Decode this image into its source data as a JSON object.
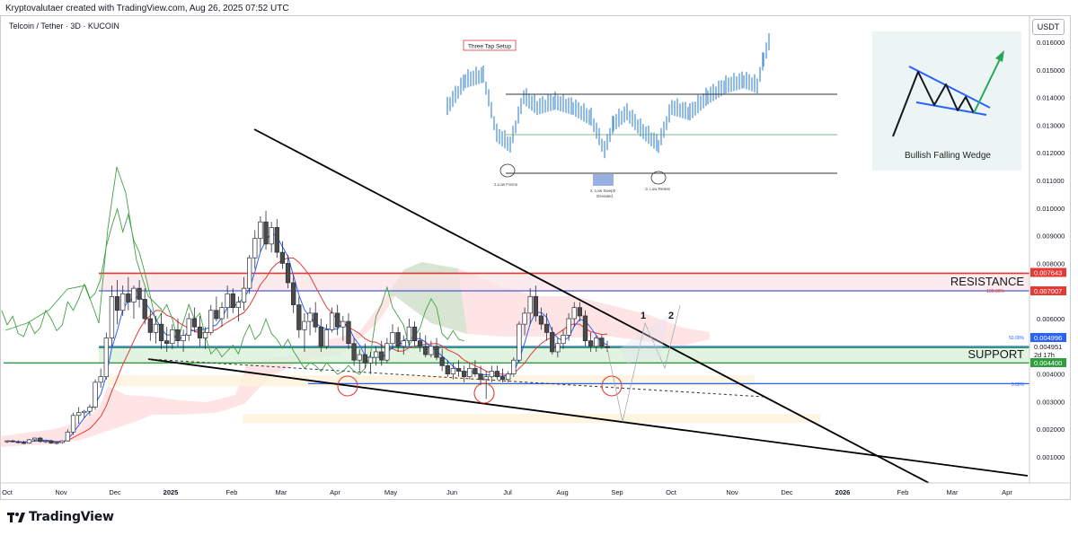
{
  "header": {
    "attribution": "Kryptovalutaer created with TradingView.com, Aug 26, 2025 07:52 UTC",
    "symbol": "Telcoin / Tether · 3D · KUCOIN",
    "currency": "USDT"
  },
  "footer": {
    "brand": "TradingView"
  },
  "colors": {
    "resistance": "#e53935",
    "support": "#2e9e3e",
    "fib": "#2962ff",
    "bullish_candle": "#ffffff",
    "bearish_candle": "#4a4a4a",
    "kumo_bull": "#c8e6c9",
    "kumo_bear": "#ffcdd2",
    "baseline": "#e53935",
    "conversion": "#2962ff",
    "lagging": "#43a047"
  },
  "annotations": {
    "resistance_label": "RESISTANCE",
    "support_label": "SUPPORT",
    "point_1": "1",
    "point_2": "2",
    "fib_top": "100.00%",
    "fib_mid": "50.00%",
    "fib_low": "0.00%"
  },
  "inset_setup": {
    "title": "Three Tap Setup",
    "label_1": "1.Low Forms",
    "label_2a": "2. Low Swept/",
    "label_2b": "Deviated",
    "label_3": "3. Low Retest"
  },
  "inset_wedge": {
    "caption": "Bullish Falling Wedge"
  },
  "chart_data": {
    "type": "candlestick",
    "title": "Telcoin / Tether · 3D · KUCOIN",
    "y_unit": "USDT",
    "ylim": [
      0.0,
      0.0168
    ],
    "y_ticks": [
      "0.016000",
      "0.015000",
      "0.014000",
      "0.013000",
      "0.012000",
      "0.011000",
      "0.010000",
      "0.009000",
      "0.008000",
      "0.007000",
      "0.006000",
      "0.005000",
      "0.004000",
      "0.003000",
      "0.002000",
      "0.001000"
    ],
    "x_ticks": [
      "Oct",
      "Nov",
      "Dec",
      "2025",
      "Feb",
      "Mar",
      "Apr",
      "May",
      "Jun",
      "Jul",
      "Aug",
      "Sep",
      "Oct",
      "Nov",
      "Dec",
      "2026",
      "Feb",
      "Mar",
      "Apr"
    ],
    "price_labels": [
      {
        "value": "0.007643",
        "color": "#e53935"
      },
      {
        "value": "0.007007",
        "color": "#e53935"
      },
      {
        "value": "0.004996",
        "color": "#2962ff"
      },
      {
        "value": "0.004951",
        "color": "#e0e3eb"
      },
      {
        "value": "2d 17h",
        "color": "#e0e3eb"
      },
      {
        "value": "0.004400",
        "color": "#2e9e3e"
      }
    ],
    "levels": {
      "resistance_top": 0.007643,
      "resistance_low": 0.007007,
      "fib_50": 0.004996,
      "support_top": 0.004951,
      "support_low": 0.0044,
      "fib_0": 0.00365
    },
    "current_price": 0.004951,
    "countdown": "2d 17h",
    "candles_ohlc": [
      [
        0.00155,
        0.0016,
        0.0015,
        0.00158
      ],
      [
        0.00158,
        0.00162,
        0.00152,
        0.00155
      ],
      [
        0.00155,
        0.0016,
        0.00148,
        0.00152
      ],
      [
        0.00152,
        0.00158,
        0.00146,
        0.0015
      ],
      [
        0.0015,
        0.00165,
        0.00148,
        0.00162
      ],
      [
        0.00162,
        0.0017,
        0.00155,
        0.00168
      ],
      [
        0.00168,
        0.00172,
        0.00152,
        0.00156
      ],
      [
        0.00156,
        0.0016,
        0.0015,
        0.00158
      ],
      [
        0.00158,
        0.00162,
        0.00148,
        0.0015
      ],
      [
        0.0015,
        0.00155,
        0.00145,
        0.00152
      ],
      [
        0.00152,
        0.0016,
        0.00148,
        0.00158
      ],
      [
        0.00158,
        0.002,
        0.00155,
        0.0019
      ],
      [
        0.0019,
        0.0026,
        0.0018,
        0.0025
      ],
      [
        0.0025,
        0.0028,
        0.0022,
        0.0026
      ],
      [
        0.0026,
        0.0027,
        0.0024,
        0.00265
      ],
      [
        0.00265,
        0.0029,
        0.0025,
        0.0028
      ],
      [
        0.0028,
        0.0038,
        0.0027,
        0.0037
      ],
      [
        0.0037,
        0.0042,
        0.0035,
        0.0039
      ],
      [
        0.0039,
        0.0055,
        0.0038,
        0.0053
      ],
      [
        0.0053,
        0.0072,
        0.005,
        0.0068
      ],
      [
        0.0068,
        0.0074,
        0.0058,
        0.0063
      ],
      [
        0.0063,
        0.0072,
        0.0061,
        0.0069
      ],
      [
        0.0069,
        0.0075,
        0.0063,
        0.0066
      ],
      [
        0.0066,
        0.0072,
        0.006,
        0.0071
      ],
      [
        0.0071,
        0.0074,
        0.0064,
        0.0067
      ],
      [
        0.0067,
        0.0071,
        0.0058,
        0.006
      ],
      [
        0.006,
        0.0063,
        0.0052,
        0.0055
      ],
      [
        0.0055,
        0.0061,
        0.0051,
        0.0058
      ],
      [
        0.0058,
        0.0062,
        0.0049,
        0.0052
      ],
      [
        0.0052,
        0.0057,
        0.0048,
        0.0051
      ],
      [
        0.0051,
        0.0058,
        0.0049,
        0.0056
      ],
      [
        0.0056,
        0.006,
        0.005,
        0.0052
      ],
      [
        0.0052,
        0.0056,
        0.0048,
        0.0054
      ],
      [
        0.0054,
        0.0062,
        0.0052,
        0.006
      ],
      [
        0.006,
        0.0064,
        0.0055,
        0.0057
      ],
      [
        0.0057,
        0.0061,
        0.005,
        0.0053
      ],
      [
        0.0053,
        0.0057,
        0.0049,
        0.0055
      ],
      [
        0.0055,
        0.0065,
        0.0054,
        0.0063
      ],
      [
        0.0063,
        0.0068,
        0.0059,
        0.006
      ],
      [
        0.006,
        0.0066,
        0.0057,
        0.0064
      ],
      [
        0.0064,
        0.0072,
        0.006,
        0.0069
      ],
      [
        0.0069,
        0.0071,
        0.0062,
        0.0064
      ],
      [
        0.0064,
        0.0068,
        0.0059,
        0.0066
      ],
      [
        0.0066,
        0.0075,
        0.0063,
        0.0071
      ],
      [
        0.0071,
        0.0083,
        0.0069,
        0.0082
      ],
      [
        0.0082,
        0.0092,
        0.0078,
        0.0089
      ],
      [
        0.0089,
        0.0097,
        0.0084,
        0.0095
      ],
      [
        0.0095,
        0.0099,
        0.0085,
        0.0087
      ],
      [
        0.0087,
        0.0095,
        0.0084,
        0.0093
      ],
      [
        0.0093,
        0.0096,
        0.0082,
        0.0084
      ],
      [
        0.0084,
        0.0088,
        0.0078,
        0.008
      ],
      [
        0.008,
        0.0083,
        0.0071,
        0.0073
      ],
      [
        0.0073,
        0.0076,
        0.0062,
        0.0065
      ],
      [
        0.0065,
        0.0068,
        0.0053,
        0.0056
      ],
      [
        0.0056,
        0.0062,
        0.0048,
        0.0059
      ],
      [
        0.0059,
        0.0064,
        0.0054,
        0.0062
      ],
      [
        0.0062,
        0.0066,
        0.0055,
        0.0057
      ],
      [
        0.0057,
        0.006,
        0.0048,
        0.005
      ],
      [
        0.005,
        0.0058,
        0.0049,
        0.0056
      ],
      [
        0.0056,
        0.0064,
        0.0055,
        0.0062
      ],
      [
        0.0062,
        0.0065,
        0.0054,
        0.0057
      ],
      [
        0.0057,
        0.0061,
        0.0052,
        0.0059
      ],
      [
        0.0059,
        0.0062,
        0.0049,
        0.0051
      ],
      [
        0.0051,
        0.0053,
        0.0043,
        0.0045
      ],
      [
        0.0045,
        0.0049,
        0.0041,
        0.0047
      ],
      [
        0.0047,
        0.0051,
        0.0042,
        0.0044
      ],
      [
        0.0044,
        0.0048,
        0.004,
        0.0046
      ],
      [
        0.0046,
        0.005,
        0.0043,
        0.0048
      ],
      [
        0.0048,
        0.0052,
        0.0043,
        0.0045
      ],
      [
        0.0045,
        0.0053,
        0.0044,
        0.0051
      ],
      [
        0.0051,
        0.0058,
        0.0049,
        0.0055
      ],
      [
        0.0055,
        0.0057,
        0.0048,
        0.005
      ],
      [
        0.005,
        0.0054,
        0.0047,
        0.0052
      ],
      [
        0.0052,
        0.006,
        0.005,
        0.0057
      ],
      [
        0.0057,
        0.0059,
        0.005,
        0.0052
      ],
      [
        0.0052,
        0.0055,
        0.0048,
        0.005
      ],
      [
        0.005,
        0.0054,
        0.0046,
        0.0047
      ],
      [
        0.0047,
        0.0052,
        0.0046,
        0.005
      ],
      [
        0.005,
        0.0053,
        0.0045,
        0.0046
      ],
      [
        0.0046,
        0.0049,
        0.0041,
        0.0043
      ],
      [
        0.0043,
        0.0045,
        0.0039,
        0.004
      ],
      [
        0.004,
        0.0044,
        0.0038,
        0.0042
      ],
      [
        0.0042,
        0.0045,
        0.0039,
        0.0041
      ],
      [
        0.0041,
        0.0043,
        0.0037,
        0.0039
      ],
      [
        0.0039,
        0.0044,
        0.0038,
        0.0042
      ],
      [
        0.0042,
        0.0045,
        0.0039,
        0.004
      ],
      [
        0.004,
        0.0043,
        0.0036,
        0.0038
      ],
      [
        0.0038,
        0.0041,
        0.0031,
        0.0039
      ],
      [
        0.0039,
        0.0043,
        0.0037,
        0.0041
      ],
      [
        0.0041,
        0.0043,
        0.0038,
        0.0039
      ],
      [
        0.0039,
        0.0042,
        0.0037,
        0.0038
      ],
      [
        0.0038,
        0.0041,
        0.0037,
        0.004
      ],
      [
        0.004,
        0.0046,
        0.0039,
        0.0045
      ],
      [
        0.0045,
        0.0059,
        0.0044,
        0.0058
      ],
      [
        0.0058,
        0.0064,
        0.0054,
        0.0062
      ],
      [
        0.0062,
        0.0071,
        0.0058,
        0.0068
      ],
      [
        0.0068,
        0.0072,
        0.0059,
        0.0061
      ],
      [
        0.0061,
        0.0064,
        0.0056,
        0.0058
      ],
      [
        0.0058,
        0.0062,
        0.0052,
        0.0055
      ],
      [
        0.0055,
        0.0057,
        0.0047,
        0.0048
      ],
      [
        0.0048,
        0.0053,
        0.0046,
        0.0051
      ],
      [
        0.0051,
        0.0056,
        0.0049,
        0.0054
      ],
      [
        0.0054,
        0.0062,
        0.0052,
        0.006
      ],
      [
        0.006,
        0.0066,
        0.0057,
        0.0064
      ],
      [
        0.0064,
        0.0066,
        0.0059,
        0.0061
      ],
      [
        0.0061,
        0.0063,
        0.005,
        0.0052
      ],
      [
        0.0052,
        0.0055,
        0.0048,
        0.005
      ],
      [
        0.005,
        0.0054,
        0.0048,
        0.0053
      ],
      [
        0.0053,
        0.0054,
        0.0049,
        0.005
      ],
      [
        0.005,
        0.0052,
        0.0048,
        0.00495
      ]
    ]
  }
}
